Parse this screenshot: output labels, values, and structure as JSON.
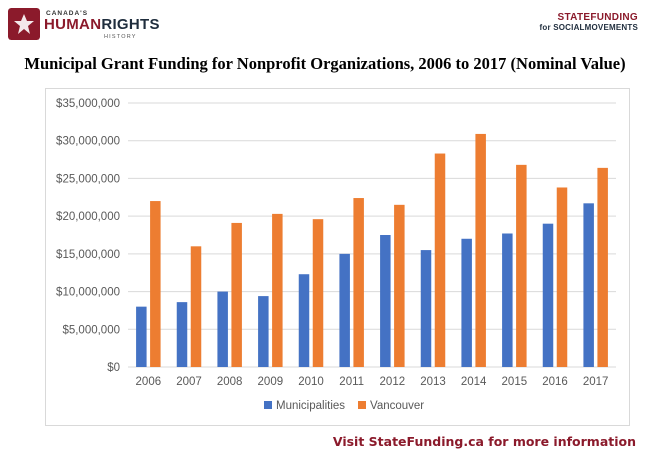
{
  "header": {
    "left_logo_top": "CANADA'S",
    "left_logo_main_a": "HUMAN",
    "left_logo_main_b": "RIGHTS",
    "left_logo_bottom": "HISTORY",
    "right_logo_line1": "STATEFUNDING",
    "right_logo_line2": "for SOCIALMOVEMENTS"
  },
  "chart_title": "Municipal Grant Funding for Nonprofit Organizations, 2006 to 2017 (Nominal Value)",
  "footer_text": "Visit StateFunding.ca for more information",
  "colors": {
    "municipalities": "#4472c4",
    "vancouver": "#ed7d31",
    "brand": "#8b1a2b",
    "grid": "#d9d9d9"
  },
  "chart_data": {
    "type": "bar",
    "title": "Municipal Grant Funding for Nonprofit Organizations, 2006 to 2017 (Nominal Value)",
    "xlabel": "",
    "ylabel": "",
    "categories": [
      "2006",
      "2007",
      "2008",
      "2009",
      "2010",
      "2011",
      "2012",
      "2013",
      "2014",
      "2015",
      "2016",
      "2017"
    ],
    "series": [
      {
        "name": "Municipalities",
        "values": [
          8000000,
          8600000,
          10000000,
          9400000,
          12300000,
          15000000,
          17500000,
          15500000,
          17000000,
          17700000,
          19000000,
          21700000
        ]
      },
      {
        "name": "Vancouver",
        "values": [
          22000000,
          16000000,
          19100000,
          20300000,
          19600000,
          22400000,
          21500000,
          28300000,
          30900000,
          26800000,
          23800000,
          26400000
        ]
      }
    ],
    "ylim": [
      0,
      35000000
    ],
    "yticks": [
      0,
      5000000,
      10000000,
      15000000,
      20000000,
      25000000,
      30000000,
      35000000
    ],
    "ytick_labels": [
      "$0",
      "$5,000,000",
      "$10,000,000",
      "$15,000,000",
      "$20,000,000",
      "$25,000,000",
      "$30,000,000",
      "$35,000,000"
    ],
    "grid": true,
    "legend_position": "bottom"
  }
}
